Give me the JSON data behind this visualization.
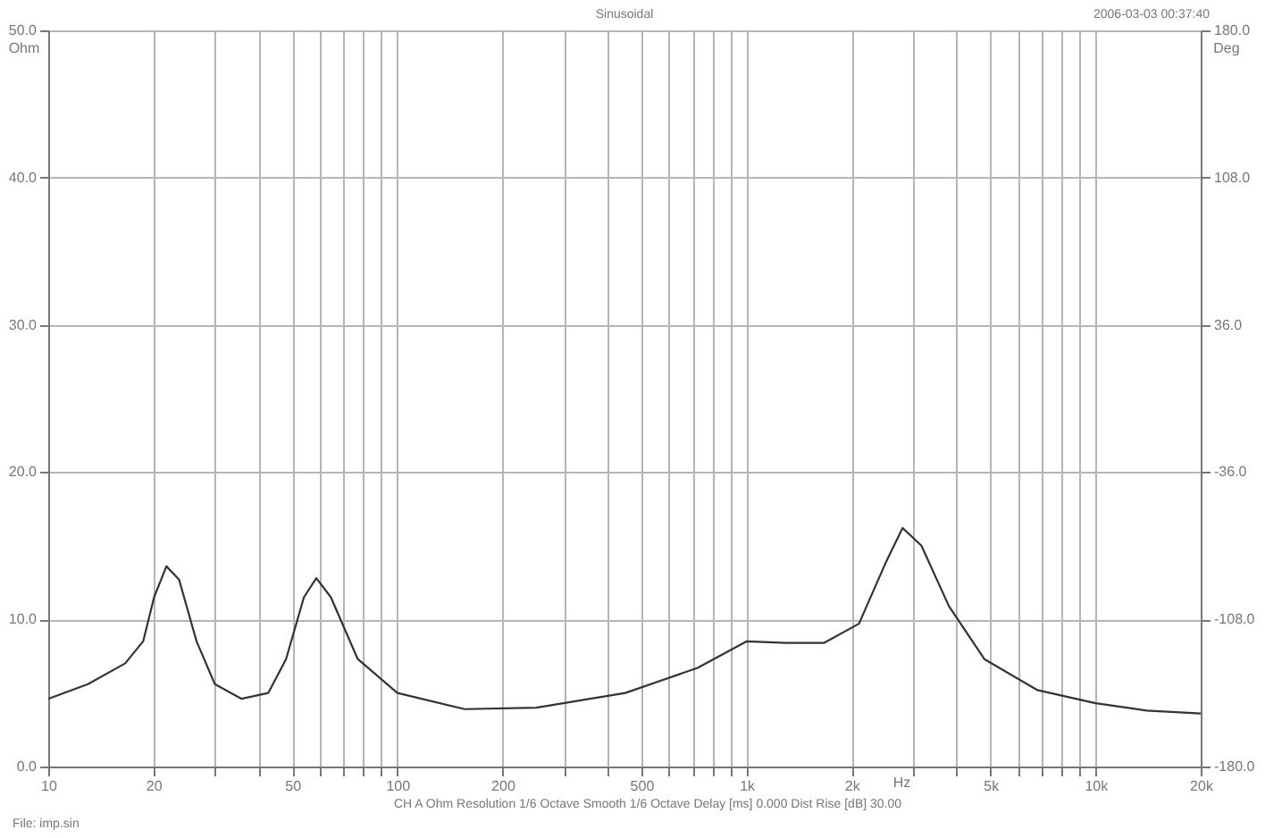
{
  "chart_data": {
    "type": "line",
    "title": "Sinusoidal",
    "xlabel": "Hz",
    "ylabel": "Ohm",
    "y2label": "Deg",
    "annotations": [
      "2006-03-03 00:37:40",
      "CH A  Ohm  Resolution 1/6 Octave  Smooth 1/6 Octave  Delay [ms] 0.000  Dist Rise [dB] 30.00",
      "File: imp.sin"
    ],
    "log": "x",
    "grid": true,
    "marker": "none",
    "line_style": "solid",
    "xlim": [
      10,
      20000
    ],
    "ylim": [
      0,
      50
    ],
    "y2lim": [
      -180,
      180
    ],
    "xticks": [
      {
        "value": 10,
        "label": "10"
      },
      {
        "value": 20,
        "label": "20"
      },
      {
        "value": 30,
        "label": null
      },
      {
        "value": 40,
        "label": null
      },
      {
        "value": 50,
        "label": "50"
      },
      {
        "value": 60,
        "label": null
      },
      {
        "value": 70,
        "label": null
      },
      {
        "value": 80,
        "label": null
      },
      {
        "value": 90,
        "label": null
      },
      {
        "value": 100,
        "label": "100"
      },
      {
        "value": 200,
        "label": "200"
      },
      {
        "value": 300,
        "label": null
      },
      {
        "value": 400,
        "label": null
      },
      {
        "value": 500,
        "label": "500"
      },
      {
        "value": 600,
        "label": null
      },
      {
        "value": 700,
        "label": null
      },
      {
        "value": 800,
        "label": null
      },
      {
        "value": 900,
        "label": null
      },
      {
        "value": 1000,
        "label": "1k"
      },
      {
        "value": 2000,
        "label": "2k"
      },
      {
        "value": 3000,
        "label": null
      },
      {
        "value": 4000,
        "label": null
      },
      {
        "value": 5000,
        "label": "5k"
      },
      {
        "value": 6000,
        "label": null
      },
      {
        "value": 7000,
        "label": null
      },
      {
        "value": 8000,
        "label": null
      },
      {
        "value": 9000,
        "label": null
      },
      {
        "value": 10000,
        "label": "10k"
      },
      {
        "value": 20000,
        "label": "20k"
      }
    ],
    "yticks": [
      {
        "value": 0,
        "label": "0.0"
      },
      {
        "value": 10,
        "label": "10.0"
      },
      {
        "value": 20,
        "label": "20.0"
      },
      {
        "value": 30,
        "label": "30.0"
      },
      {
        "value": 40,
        "label": "40.0"
      },
      {
        "value": 50,
        "label": "50.0"
      }
    ],
    "y2ticks": [
      {
        "value": -180,
        "label": "-180.0"
      },
      {
        "value": -108,
        "label": "-108.0"
      },
      {
        "value": -36,
        "label": "-36.0"
      },
      {
        "value": 36,
        "label": "36.0"
      },
      {
        "value": 108,
        "label": "108.0"
      },
      {
        "value": 180,
        "label": "180.0"
      }
    ],
    "series": [
      {
        "color": "#333333",
        "x": [
          10,
          13,
          16.6,
          18.7,
          20.1,
          21.8,
          23.7,
          26.6,
          30,
          35.8,
          42.7,
          48,
          54,
          58.6,
          64.5,
          77,
          100,
          156,
          250,
          450,
          725,
          1000,
          1300,
          1670,
          2100,
          2500,
          2800,
          3170,
          3800,
          4800,
          6800,
          10000,
          14000,
          20000
        ],
        "values": [
          4.6,
          5.6,
          7.0,
          8.5,
          11.5,
          13.6,
          12.7,
          8.5,
          5.6,
          4.6,
          5.0,
          7.3,
          11.5,
          12.8,
          11.5,
          7.3,
          5.0,
          3.9,
          4.0,
          5.0,
          6.7,
          8.5,
          8.4,
          8.4,
          9.7,
          13.8,
          16.2,
          15.0,
          10.9,
          7.3,
          5.2,
          4.3,
          3.8,
          3.6
        ]
      }
    ]
  }
}
